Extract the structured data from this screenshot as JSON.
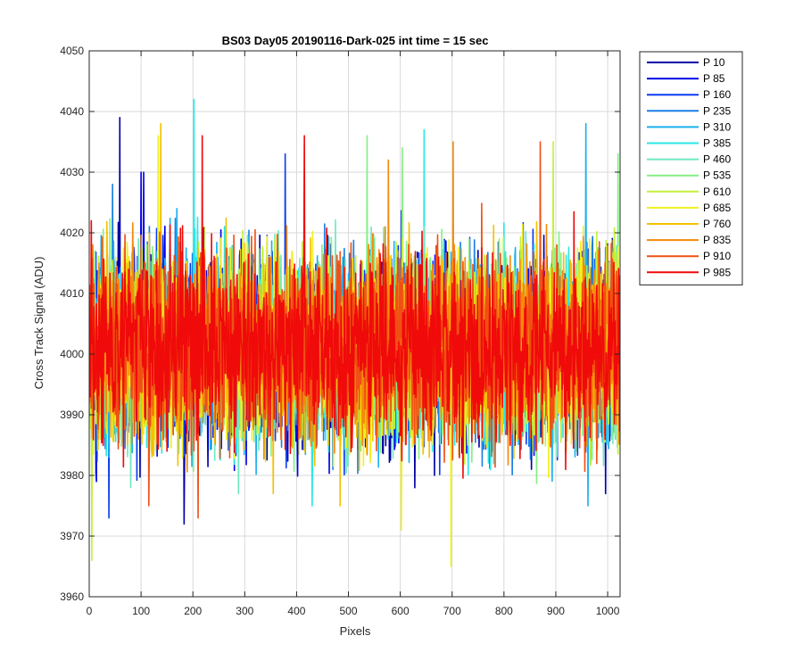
{
  "chart_data": {
    "type": "line",
    "title": "BS03 Day05 20190116-Dark-025 int time = 15 sec",
    "xlabel": "Pixels",
    "ylabel": "Cross Track Signal (ADU)",
    "xlim": [
      0,
      1024
    ],
    "ylim": [
      3960,
      4050
    ],
    "xticks": [
      0,
      100,
      200,
      300,
      400,
      500,
      600,
      700,
      800,
      900,
      1000
    ],
    "yticks": [
      3960,
      3970,
      3980,
      3990,
      4000,
      4010,
      4020,
      4030,
      4040,
      4050
    ],
    "grid": true,
    "legend_position": "outside-right",
    "n_points": 1024,
    "series": [
      {
        "name": "P 10",
        "color": "#0000a6",
        "mean": 4001,
        "noise": 7.5,
        "spikes": [
          [
            59,
            4039
          ],
          [
            183,
            3972
          ],
          [
            996,
            3977
          ]
        ]
      },
      {
        "name": "P 85",
        "color": "#0000e8",
        "mean": 4001,
        "noise": 7.5,
        "spikes": [
          [
            100,
            4030
          ],
          [
            105,
            4030
          ],
          [
            14,
            3979
          ]
        ]
      },
      {
        "name": "P 160",
        "color": "#0a3cf0",
        "mean": 4001,
        "noise": 7.5,
        "spikes": [
          [
            38,
            3973
          ],
          [
            378,
            4033
          ]
        ]
      },
      {
        "name": "P 235",
        "color": "#1a7ee6",
        "mean": 4001,
        "noise": 7.5,
        "spikes": [
          [
            45,
            4028
          ],
          [
            470,
            3981
          ]
        ]
      },
      {
        "name": "P 310",
        "color": "#1ab0ee",
        "mean": 4001,
        "noise": 7.5,
        "spikes": [
          [
            958,
            4038
          ],
          [
            962,
            3975
          ]
        ]
      },
      {
        "name": "P 385",
        "color": "#2ae6e6",
        "mean": 4001,
        "noise": 7.5,
        "spikes": [
          [
            202,
            4042
          ],
          [
            646,
            4037
          ],
          [
            430,
            3975
          ]
        ]
      },
      {
        "name": "P 460",
        "color": "#6fe8c4",
        "mean": 4001,
        "noise": 7.5,
        "spikes": [
          [
            80,
            3978
          ],
          [
            288,
            3977
          ]
        ]
      },
      {
        "name": "P 535",
        "color": "#84f084",
        "mean": 4001,
        "noise": 7.5,
        "spikes": [
          [
            536,
            4036
          ],
          [
            604,
            4034
          ],
          [
            1020,
            4033
          ]
        ]
      },
      {
        "name": "P 610",
        "color": "#c4f03a",
        "mean": 4001,
        "noise": 7.5,
        "spikes": [
          [
            5,
            3966
          ],
          [
            895,
            4035
          ]
        ]
      },
      {
        "name": "P 685",
        "color": "#f0f020",
        "mean": 4001,
        "noise": 7.5,
        "spikes": [
          [
            698,
            3965
          ],
          [
            602,
            3971
          ],
          [
            133,
            4036
          ]
        ]
      },
      {
        "name": "P 760",
        "color": "#f5c000",
        "mean": 4001,
        "noise": 7.5,
        "spikes": [
          [
            138,
            4038
          ],
          [
            484,
            3975
          ],
          [
            355,
            3977
          ]
        ]
      },
      {
        "name": "P 835",
        "color": "#f58a0a",
        "mean": 4001,
        "noise": 7.5,
        "spikes": [
          [
            577,
            4032
          ],
          [
            702,
            4035
          ]
        ]
      },
      {
        "name": "P 910",
        "color": "#f05014",
        "mean": 4001,
        "noise": 7.5,
        "spikes": [
          [
            115,
            3975
          ],
          [
            210,
            3973
          ],
          [
            870,
            4035
          ]
        ]
      },
      {
        "name": "P 985",
        "color": "#f00a0a",
        "mean": 4001,
        "noise": 7.5,
        "spikes": [
          [
            218,
            4036
          ],
          [
            415,
            4036
          ],
          [
            4,
            4022
          ]
        ]
      }
    ]
  }
}
